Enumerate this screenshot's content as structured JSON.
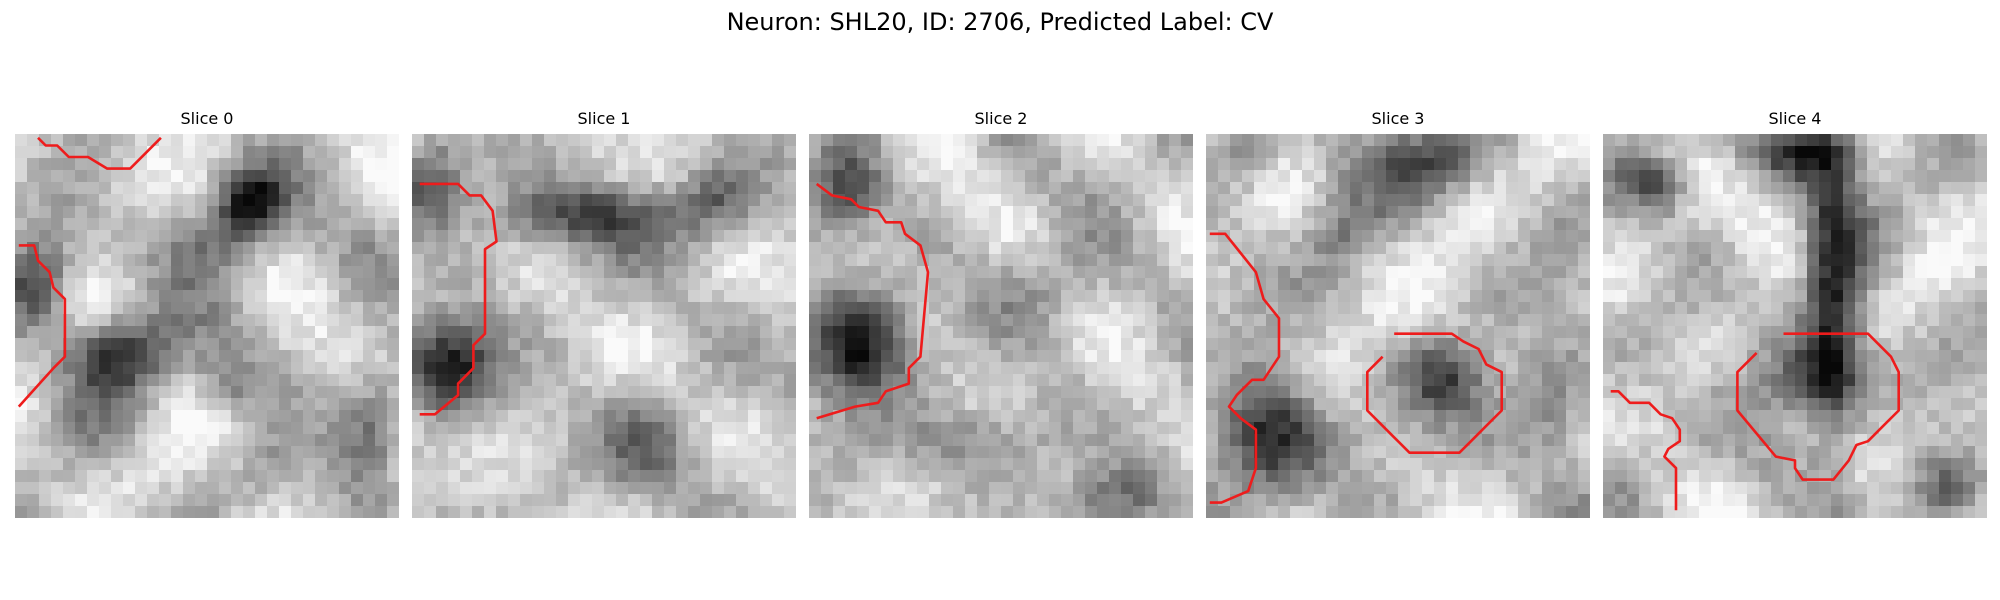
{
  "figure": {
    "title": "Neuron: SHL20, ID: 2706, Predicted Label: CV",
    "slices": [
      {
        "title": "Slice 0",
        "seed": 11,
        "dark": [
          [
            0.27,
            0.57,
            0.1,
            0.07,
            0.85
          ],
          [
            0.06,
            0.4,
            0.06,
            0.08,
            0.6
          ],
          [
            0.62,
            0.18,
            0.06,
            0.06,
            0.85
          ],
          [
            0.55,
            0.28,
            0.1,
            0.08,
            0.45
          ],
          [
            0.92,
            0.8,
            0.06,
            0.12,
            0.55
          ],
          [
            0.55,
            0.65,
            0.06,
            0.06,
            0.4
          ]
        ],
        "contours": [
          [
            [
              0.06,
              0.01
            ],
            [
              0.08,
              0.03
            ],
            [
              0.11,
              0.03
            ],
            [
              0.14,
              0.06
            ],
            [
              0.19,
              0.06
            ],
            [
              0.24,
              0.09
            ],
            [
              0.3,
              0.09
            ],
            [
              0.38,
              0.01
            ]
          ],
          [
            [
              0.01,
              0.29
            ],
            [
              0.05,
              0.29
            ],
            [
              0.06,
              0.33
            ],
            [
              0.09,
              0.36
            ],
            [
              0.1,
              0.4
            ],
            [
              0.13,
              0.43
            ],
            [
              0.13,
              0.58
            ],
            [
              0.1,
              0.61
            ],
            [
              0.01,
              0.71
            ]
          ]
        ]
      },
      {
        "title": "Slice 1",
        "seed": 23,
        "dark": [
          [
            0.1,
            0.61,
            0.08,
            0.08,
            0.95
          ],
          [
            0.05,
            0.13,
            0.06,
            0.08,
            0.6
          ],
          [
            0.5,
            0.21,
            0.22,
            0.06,
            0.65
          ],
          [
            0.62,
            0.82,
            0.09,
            0.1,
            0.35
          ],
          [
            0.8,
            0.15,
            0.06,
            0.06,
            0.3
          ]
        ],
        "contours": [
          [
            [
              0.02,
              0.13
            ],
            [
              0.12,
              0.13
            ],
            [
              0.15,
              0.16
            ],
            [
              0.18,
              0.16
            ],
            [
              0.21,
              0.2
            ],
            [
              0.22,
              0.28
            ],
            [
              0.19,
              0.3
            ],
            [
              0.19,
              0.52
            ],
            [
              0.16,
              0.55
            ],
            [
              0.16,
              0.61
            ],
            [
              0.12,
              0.65
            ],
            [
              0.12,
              0.68
            ],
            [
              0.06,
              0.73
            ],
            [
              0.02,
              0.73
            ]
          ]
        ]
      },
      {
        "title": "Slice 2",
        "seed": 37,
        "dark": [
          [
            0.12,
            0.55,
            0.09,
            0.1,
            0.95
          ],
          [
            0.1,
            0.15,
            0.07,
            0.08,
            0.6
          ],
          [
            0.4,
            0.8,
            0.15,
            0.06,
            0.35
          ],
          [
            0.62,
            0.4,
            0.1,
            0.08,
            0.3
          ],
          [
            0.8,
            0.95,
            0.12,
            0.05,
            0.35
          ]
        ],
        "contours": [
          [
            [
              0.02,
              0.13
            ],
            [
              0.06,
              0.16
            ],
            [
              0.11,
              0.17
            ],
            [
              0.13,
              0.19
            ],
            [
              0.18,
              0.2
            ],
            [
              0.2,
              0.23
            ],
            [
              0.24,
              0.23
            ],
            [
              0.25,
              0.26
            ],
            [
              0.29,
              0.29
            ],
            [
              0.31,
              0.36
            ],
            [
              0.29,
              0.58
            ],
            [
              0.26,
              0.61
            ],
            [
              0.26,
              0.65
            ],
            [
              0.2,
              0.67
            ],
            [
              0.18,
              0.7
            ],
            [
              0.12,
              0.71
            ],
            [
              0.02,
              0.74
            ]
          ]
        ]
      },
      {
        "title": "Slice 3",
        "seed": 53,
        "dark": [
          [
            0.16,
            0.8,
            0.1,
            0.1,
            0.95
          ],
          [
            0.1,
            0.05,
            0.06,
            0.06,
            0.5
          ],
          [
            0.55,
            0.07,
            0.12,
            0.06,
            0.55
          ],
          [
            0.62,
            0.64,
            0.08,
            0.07,
            0.55
          ],
          [
            0.9,
            0.7,
            0.08,
            0.12,
            0.45
          ],
          [
            0.35,
            0.24,
            0.07,
            0.07,
            0.35
          ]
        ],
        "contours": [
          [
            [
              0.01,
              0.26
            ],
            [
              0.05,
              0.26
            ],
            [
              0.09,
              0.31
            ],
            [
              0.13,
              0.36
            ],
            [
              0.15,
              0.43
            ],
            [
              0.19,
              0.48
            ],
            [
              0.19,
              0.58
            ],
            [
              0.15,
              0.64
            ],
            [
              0.12,
              0.64
            ],
            [
              0.08,
              0.68
            ],
            [
              0.06,
              0.71
            ],
            [
              0.09,
              0.74
            ],
            [
              0.13,
              0.77
            ],
            [
              0.13,
              0.87
            ],
            [
              0.11,
              0.93
            ],
            [
              0.04,
              0.96
            ],
            [
              0.01,
              0.96
            ]
          ],
          [
            [
              0.49,
              0.52
            ],
            [
              0.64,
              0.52
            ],
            [
              0.67,
              0.54
            ],
            [
              0.71,
              0.56
            ],
            [
              0.73,
              0.6
            ],
            [
              0.77,
              0.62
            ],
            [
              0.77,
              0.72
            ],
            [
              0.73,
              0.76
            ],
            [
              0.69,
              0.8
            ],
            [
              0.66,
              0.83
            ],
            [
              0.53,
              0.83
            ],
            [
              0.49,
              0.79
            ],
            [
              0.46,
              0.76
            ],
            [
              0.42,
              0.72
            ],
            [
              0.42,
              0.62
            ],
            [
              0.46,
              0.58
            ]
          ]
        ]
      },
      {
        "title": "Slice 4",
        "seed": 71,
        "dark": [
          [
            0.6,
            0.4,
            0.05,
            0.28,
            0.8
          ],
          [
            0.55,
            0.05,
            0.1,
            0.05,
            0.7
          ],
          [
            0.55,
            0.63,
            0.1,
            0.08,
            0.55
          ],
          [
            0.15,
            0.14,
            0.05,
            0.05,
            0.5
          ],
          [
            0.9,
            0.92,
            0.06,
            0.06,
            0.4
          ],
          [
            0.1,
            0.1,
            0.05,
            0.04,
            0.3
          ]
        ],
        "contours": [
          [
            [
              0.02,
              0.67
            ],
            [
              0.04,
              0.67
            ],
            [
              0.07,
              0.7
            ],
            [
              0.12,
              0.7
            ],
            [
              0.15,
              0.73
            ],
            [
              0.18,
              0.74
            ],
            [
              0.2,
              0.77
            ],
            [
              0.2,
              0.8
            ],
            [
              0.17,
              0.82
            ],
            [
              0.16,
              0.84
            ],
            [
              0.19,
              0.87
            ],
            [
              0.19,
              0.98
            ]
          ],
          [
            [
              0.47,
              0.52
            ],
            [
              0.69,
              0.52
            ],
            [
              0.72,
              0.55
            ],
            [
              0.75,
              0.58
            ],
            [
              0.77,
              0.62
            ],
            [
              0.77,
              0.72
            ],
            [
              0.73,
              0.76
            ],
            [
              0.69,
              0.8
            ],
            [
              0.66,
              0.81
            ],
            [
              0.64,
              0.85
            ],
            [
              0.6,
              0.9
            ],
            [
              0.52,
              0.9
            ],
            [
              0.5,
              0.87
            ],
            [
              0.5,
              0.85
            ],
            [
              0.45,
              0.84
            ],
            [
              0.35,
              0.72
            ],
            [
              0.35,
              0.62
            ],
            [
              0.4,
              0.57
            ]
          ]
        ]
      }
    ],
    "contour_color": "#ee1c1c",
    "cmap": "gray"
  }
}
